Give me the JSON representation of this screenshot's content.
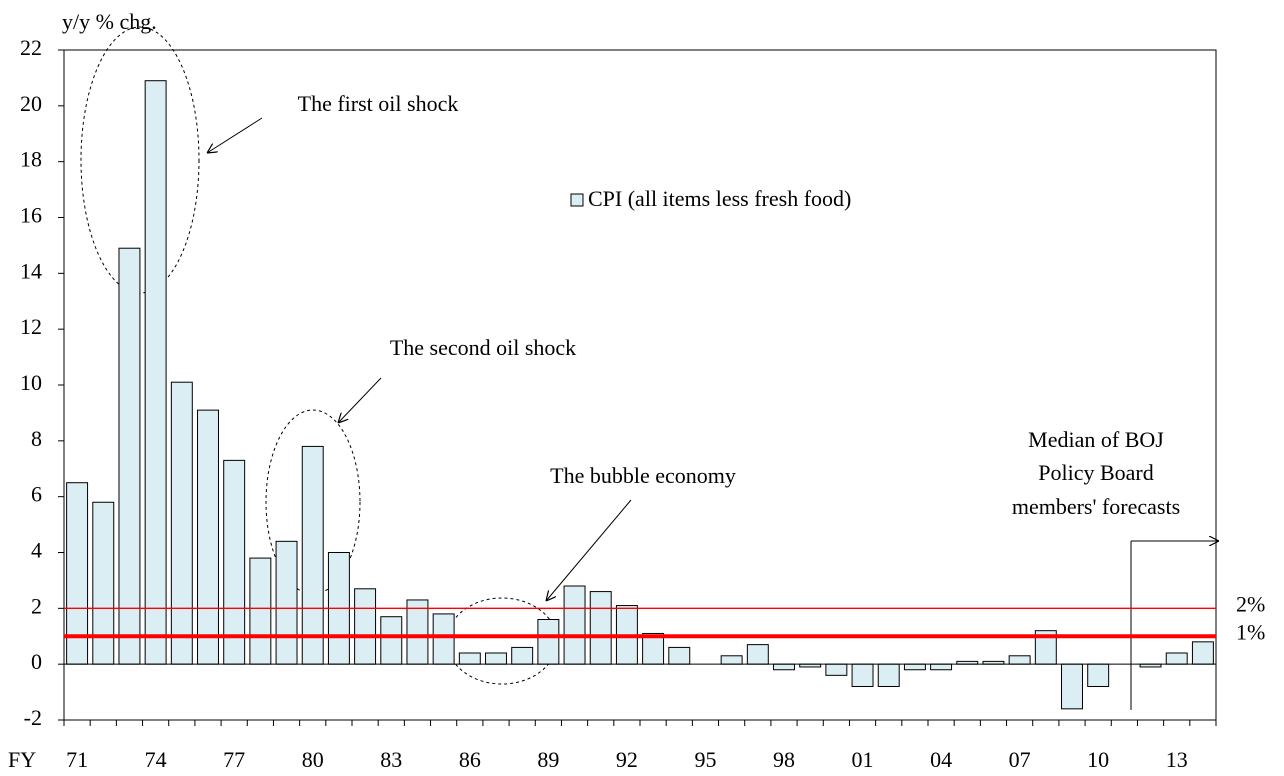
{
  "chart_data": {
    "type": "bar",
    "y_label": "y/y % chg.",
    "x_label": "FY",
    "categories": [
      "71",
      null,
      null,
      "74",
      null,
      null,
      "77",
      null,
      null,
      "80",
      null,
      null,
      "83",
      null,
      null,
      "86",
      null,
      null,
      "89",
      null,
      null,
      "92",
      null,
      null,
      "95",
      null,
      null,
      "98",
      null,
      null,
      "01",
      null,
      null,
      "04",
      null,
      null,
      "07",
      null,
      null,
      "10",
      null,
      null,
      "13",
      null
    ],
    "series": [
      {
        "name": "CPI (all items less fresh food)",
        "color": "#dbeef3",
        "values": [
          6.5,
          5.8,
          14.9,
          20.9,
          10.1,
          9.1,
          7.3,
          3.8,
          4.4,
          7.8,
          4.0,
          2.7,
          1.7,
          2.3,
          1.8,
          0.4,
          0.4,
          0.6,
          1.6,
          2.8,
          2.6,
          2.1,
          1.1,
          0.6,
          0.0,
          0.3,
          0.7,
          -0.2,
          -0.1,
          -0.4,
          -0.8,
          -0.8,
          -0.2,
          -0.2,
          0.1,
          0.1,
          0.3,
          1.2,
          -1.6,
          -0.8,
          0.0,
          -0.1,
          0.4,
          0.8
        ]
      }
    ],
    "ylim": [
      -2,
      22
    ],
    "yticks": [
      -2,
      0,
      2,
      4,
      6,
      8,
      10,
      12,
      14,
      16,
      18,
      20,
      22
    ],
    "reference_lines": [
      {
        "value": 2,
        "label": "2%",
        "color": "#ff0000"
      },
      {
        "value": 1,
        "label": "1%",
        "color": "#ff0000"
      }
    ],
    "annotations": [
      "The first oil shock",
      "The second oil shock",
      "The bubble economy"
    ],
    "forecast_note": [
      "Median of BOJ",
      "Policy Board",
      "members' forecasts"
    ]
  }
}
